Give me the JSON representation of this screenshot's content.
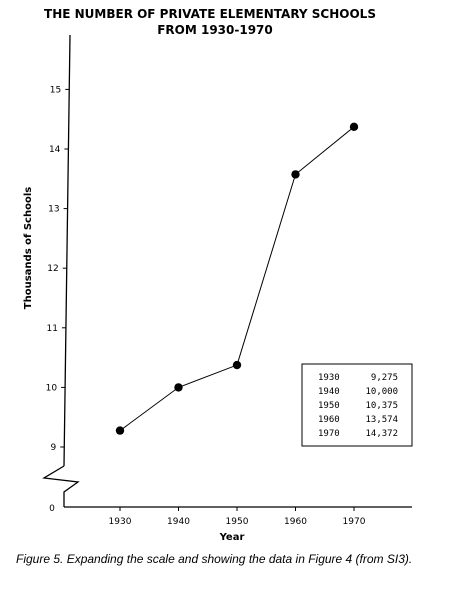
{
  "chart_data": {
    "type": "line",
    "title_lines": [
      "THE NUMBER OF PRIVATE ELEMENTARY SCHOOLS",
      "FROM 1930-1970"
    ],
    "xlabel": "Year",
    "ylabel": "Thousands of Schools",
    "x": [
      1930,
      1940,
      1950,
      1960,
      1970
    ],
    "values": [
      9.275,
      10.0,
      10.375,
      13.574,
      14.372
    ],
    "x_ticks": [
      "1930",
      "1940",
      "1950",
      "1960",
      "1970"
    ],
    "y_ticks": [
      9,
      10,
      11,
      12,
      13,
      14,
      15
    ],
    "y_ticks_labels": [
      "9",
      "10",
      "11",
      "12",
      "13",
      "14",
      "15"
    ],
    "y_zero_label": "0",
    "xlim": [
      1930,
      1970
    ],
    "ylim": [
      8.5,
      16
    ],
    "axis_break": true,
    "grid": false,
    "legend": "none",
    "data_table": {
      "position": "bottom-right",
      "rows": [
        {
          "year": "1930",
          "value": "9,275"
        },
        {
          "year": "1940",
          "value": "10,000"
        },
        {
          "year": "1950",
          "value": "10,375"
        },
        {
          "year": "1960",
          "value": "13,574"
        },
        {
          "year": "1970",
          "value": "14,372"
        }
      ]
    }
  },
  "caption": "Figure 5. Expanding the scale and showing the data in Figure 4 (from SI3)."
}
